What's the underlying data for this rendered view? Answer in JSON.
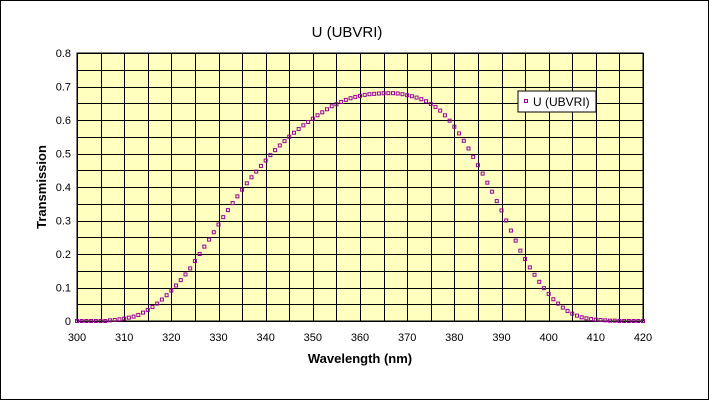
{
  "chart_data": {
    "type": "scatter",
    "title": "U (UBVRI)",
    "xlabel": "Wavelength (nm)",
    "ylabel": "Transmission",
    "xlim": [
      300,
      420
    ],
    "ylim": [
      0,
      0.8
    ],
    "xticks": [
      "300",
      "310",
      "320",
      "330",
      "340",
      "350",
      "360",
      "370",
      "380",
      "390",
      "400",
      "410",
      "420"
    ],
    "yticks": [
      "0",
      "0.1",
      "0.2",
      "0.3",
      "0.4",
      "0.5",
      "0.6",
      "0.7",
      "0.8"
    ],
    "grid": true,
    "legend_position": "right",
    "colors": {
      "plot_background": "#FFFFC0",
      "marker": "#990099",
      "grid": "#000000"
    },
    "series": [
      {
        "name": "U (UBVRI)",
        "marker": "square",
        "x": [
          300,
          301,
          302,
          303,
          304,
          305,
          306,
          307,
          308,
          309,
          310,
          311,
          312,
          313,
          314,
          315,
          316,
          317,
          318,
          319,
          320,
          321,
          322,
          323,
          324,
          325,
          326,
          327,
          328,
          329,
          330,
          331,
          332,
          333,
          334,
          335,
          336,
          337,
          338,
          339,
          340,
          341,
          342,
          343,
          344,
          345,
          346,
          347,
          348,
          349,
          350,
          351,
          352,
          353,
          354,
          355,
          356,
          357,
          358,
          359,
          360,
          361,
          362,
          363,
          364,
          365,
          366,
          367,
          368,
          369,
          370,
          371,
          372,
          373,
          374,
          375,
          376,
          377,
          378,
          379,
          380,
          381,
          382,
          383,
          384,
          385,
          386,
          387,
          388,
          389,
          390,
          391,
          392,
          393,
          394,
          395,
          396,
          397,
          398,
          399,
          400,
          401,
          402,
          403,
          404,
          405,
          406,
          407,
          408,
          409,
          410,
          411,
          412,
          413,
          414,
          415,
          416,
          417,
          418,
          419,
          420
        ],
        "y": [
          0,
          0,
          0,
          0,
          0,
          0,
          0,
          0.002,
          0.003,
          0.005,
          0.007,
          0.01,
          0.013,
          0.018,
          0.025,
          0.033,
          0.042,
          0.052,
          0.064,
          0.077,
          0.091,
          0.106,
          0.122,
          0.139,
          0.157,
          0.179,
          0.2,
          0.222,
          0.243,
          0.265,
          0.288,
          0.31,
          0.331,
          0.352,
          0.372,
          0.392,
          0.411,
          0.429,
          0.446,
          0.463,
          0.479,
          0.495,
          0.51,
          0.524,
          0.537,
          0.55,
          0.562,
          0.573,
          0.584,
          0.594,
          0.604,
          0.614,
          0.623,
          0.632,
          0.641,
          0.647,
          0.654,
          0.66,
          0.665,
          0.669,
          0.672,
          0.675,
          0.677,
          0.678,
          0.679,
          0.68,
          0.68,
          0.68,
          0.679,
          0.677,
          0.674,
          0.671,
          0.667,
          0.662,
          0.656,
          0.648,
          0.639,
          0.628,
          0.614,
          0.598,
          0.58,
          0.56,
          0.538,
          0.515,
          0.49,
          0.465,
          0.44,
          0.413,
          0.386,
          0.358,
          0.33,
          0.3,
          0.27,
          0.24,
          0.21,
          0.185,
          0.16,
          0.138,
          0.117,
          0.098,
          0.081,
          0.065,
          0.052,
          0.04,
          0.03,
          0.022,
          0.016,
          0.011,
          0.008,
          0.006,
          0.004,
          0.003,
          0.002,
          0.001,
          0.001,
          0,
          0,
          0,
          0,
          0,
          0
        ]
      }
    ]
  }
}
